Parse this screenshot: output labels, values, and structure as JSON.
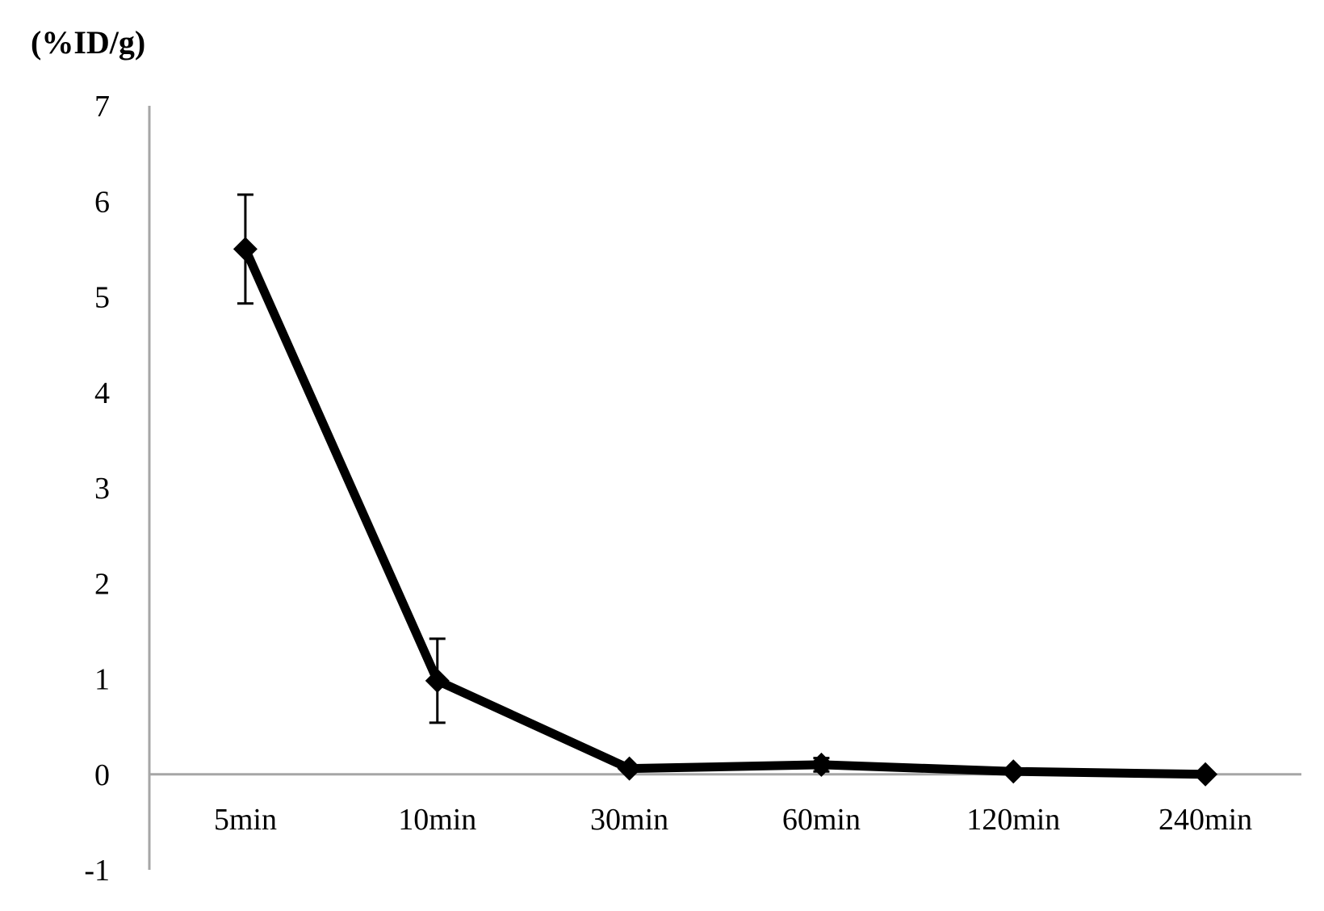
{
  "chart_data": {
    "type": "line",
    "title": "",
    "xlabel": "",
    "ylabel": "(%ID/g)",
    "categories": [
      "5min",
      "10min",
      "30min",
      "60min",
      "120min",
      "240min"
    ],
    "series": [
      {
        "values": [
          5.5,
          0.98,
          0.06,
          0.1,
          0.03,
          0.0
        ],
        "errors": [
          0.57,
          0.44,
          0.03,
          0.07,
          0.02,
          0.0
        ]
      }
    ],
    "ylim": [
      -1,
      7
    ],
    "yticks": [
      7,
      6,
      5,
      4,
      3,
      2,
      1,
      0,
      -1
    ],
    "grid": false,
    "legend": "none",
    "marker": "diamond",
    "colors": {
      "line": "#000000",
      "axis": "#a6a6a6",
      "text": "#000000"
    }
  }
}
